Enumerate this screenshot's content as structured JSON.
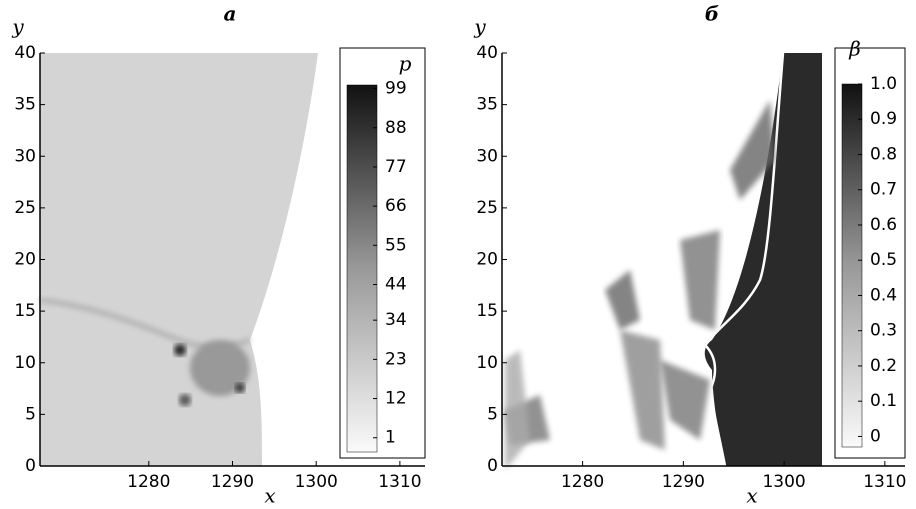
{
  "chart_data": [
    {
      "type": "heatmap",
      "title": "а",
      "xlabel": "x",
      "ylabel": "y",
      "xlim": [
        1267,
        1313
      ],
      "xticks": [
        1280,
        1290,
        1300,
        1310
      ],
      "ylim": [
        0,
        40
      ],
      "yticks": [
        0,
        5,
        10,
        15,
        20,
        25,
        30,
        35,
        40
      ],
      "colorbar_label": "p",
      "clim": [
        -3,
        100
      ],
      "colorbar_ticks": [
        1,
        12,
        23,
        34,
        44,
        55,
        66,
        77,
        88,
        99
      ]
    },
    {
      "type": "heatmap",
      "title": "б",
      "xlabel": "x",
      "ylabel": "y",
      "xlim": [
        1272,
        1312
      ],
      "xticks": [
        1280,
        1290,
        1300,
        1310
      ],
      "ylim": [
        0,
        40
      ],
      "yticks": [
        0,
        5,
        10,
        15,
        20,
        25,
        30,
        35,
        40
      ],
      "colorbar_label": "β",
      "clim": [
        -0.03,
        1.0
      ],
      "colorbar_ticks": [
        0,
        0.1,
        0.2,
        0.3,
        0.4,
        0.5,
        0.6,
        0.7,
        0.8,
        0.9,
        {
          "value": 1.0,
          "label": "1.0"
        }
      ]
    }
  ]
}
